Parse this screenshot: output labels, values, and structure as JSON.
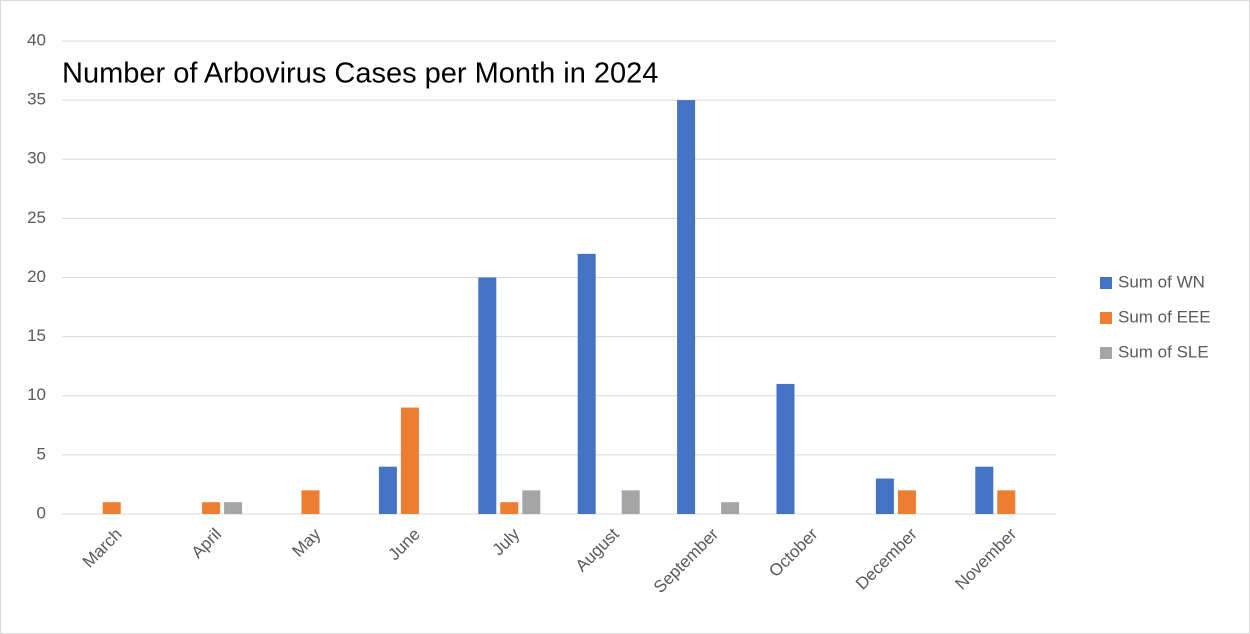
{
  "chart_data": {
    "type": "bar",
    "title": "Number of Arbovirus Cases per Month in 2024",
    "categories": [
      "March",
      "April",
      "May",
      "June",
      "July",
      "August",
      "September",
      "October",
      "December",
      "November"
    ],
    "series": [
      {
        "name": "Sum of WN",
        "color": "#4472c4",
        "values": [
          0,
          0,
          0,
          4,
          20,
          22,
          35,
          11,
          3,
          4
        ]
      },
      {
        "name": "Sum of EEE",
        "color": "#ed7d31",
        "values": [
          1,
          1,
          2,
          9,
          1,
          0,
          0,
          0,
          2,
          2
        ]
      },
      {
        "name": "Sum of SLE",
        "color": "#a5a5a5",
        "values": [
          0,
          1,
          0,
          0,
          2,
          2,
          1,
          0,
          0,
          0
        ]
      }
    ],
    "ylim": [
      0,
      40
    ],
    "yticks": [
      0,
      5,
      10,
      15,
      20,
      25,
      30,
      35,
      40
    ],
    "grid": true,
    "legend": "right"
  }
}
